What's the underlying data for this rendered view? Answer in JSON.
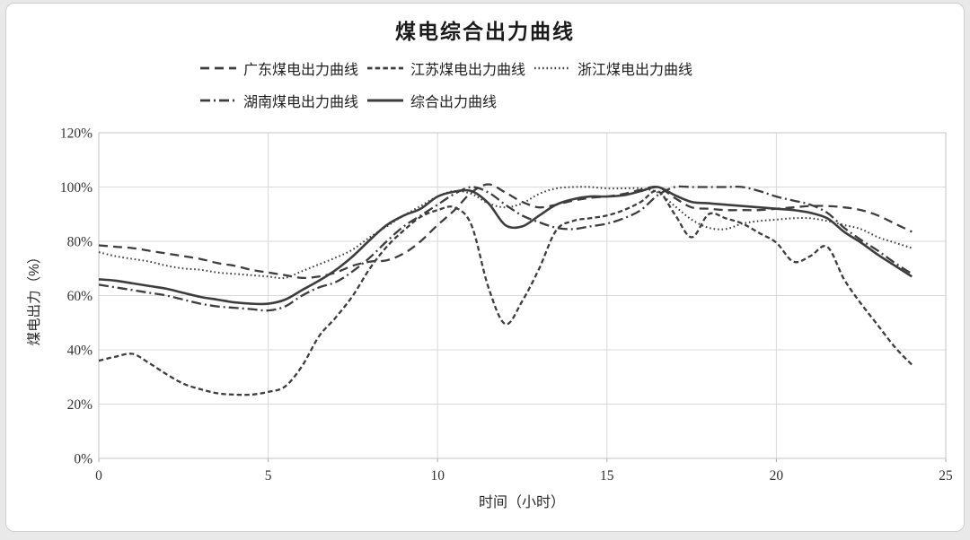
{
  "page": {
    "background_color": "#e9e9e9",
    "card_background": "#ffffff",
    "card_border_color": "#cfcfcf",
    "gridline_color": "#d9d9d9"
  },
  "chart_data": {
    "type": "line",
    "title": "煤电综合出力曲线",
    "xlabel": "时间（小时）",
    "ylabel": "煤电出力（%）",
    "xlim": [
      0,
      25
    ],
    "ylim": [
      0,
      120
    ],
    "x_ticks": [
      "0",
      "5",
      "10",
      "15",
      "20",
      "25"
    ],
    "y_ticks": [
      "0%",
      "20%",
      "40%",
      "60%",
      "80%",
      "100%",
      "120%"
    ],
    "grid": true,
    "legend_position": "top-left-two-rows",
    "legend_rows": [
      [
        0,
        1,
        2
      ],
      [
        3,
        4
      ]
    ],
    "line_color": "#3d3d3d",
    "x_start": 0,
    "x_step": 0.5,
    "series": [
      {
        "name": "广东煤电出力曲线",
        "line_style": "dash",
        "values": [
          78.5,
          78,
          77.5,
          76.5,
          75.5,
          74.5,
          73.5,
          72,
          71,
          69.5,
          68.5,
          67.5,
          66.5,
          67,
          68.5,
          71,
          72.5,
          73,
          75.5,
          80,
          86,
          91.5,
          98,
          101,
          98,
          94.5,
          92.5,
          93.5,
          95,
          96,
          96.5,
          97.5,
          99,
          100,
          96,
          92.5,
          92,
          91.5,
          91.5,
          91.5,
          92,
          92.5,
          93,
          93,
          92.5,
          91.5,
          89.5,
          86.5,
          83.5
        ]
      },
      {
        "name": "江苏煤电出力曲线",
        "line_style": "dense-dash",
        "values": [
          36,
          37.5,
          38.5,
          35,
          31,
          27.5,
          25.5,
          24,
          23.5,
          23.5,
          24.5,
          26.5,
          34,
          45,
          52,
          60,
          70,
          78,
          84,
          89,
          91.5,
          92.5,
          86,
          63,
          49.5,
          58,
          70,
          84,
          87.5,
          88.5,
          89.5,
          91.5,
          94.5,
          98.5,
          90,
          81.5,
          90,
          88.5,
          86.5,
          83,
          79.5,
          72.5,
          74.5,
          78,
          66,
          57,
          49,
          41,
          34.5
        ]
      },
      {
        "name": "浙江煤电出力曲线",
        "line_style": "dot",
        "values": [
          76,
          74.5,
          73.5,
          72.5,
          71,
          70,
          69.5,
          68.5,
          68,
          67.5,
          67,
          66.5,
          69,
          71.5,
          74,
          77,
          81.5,
          85.5,
          89.5,
          93,
          96.5,
          98.5,
          97.5,
          94,
          92.5,
          94,
          97.5,
          99.5,
          100,
          100,
          99.5,
          99.5,
          99.5,
          98,
          93,
          88,
          85,
          84.5,
          86.5,
          87.5,
          88,
          88.5,
          88.5,
          87.5,
          86,
          84.5,
          81.5,
          79.5,
          77.5
        ]
      },
      {
        "name": "湖南煤电出力曲线",
        "line_style": "dash-dot",
        "values": [
          64,
          63,
          62,
          61,
          60,
          58.5,
          57,
          56,
          55.5,
          55,
          54.5,
          56,
          60,
          63,
          65,
          69,
          74,
          80,
          85.5,
          89.5,
          93.5,
          97.5,
          100,
          98,
          93.5,
          89.5,
          87,
          85,
          84.5,
          85.5,
          86.5,
          88.5,
          91.5,
          97,
          100,
          100,
          100,
          100,
          100,
          98.5,
          96.5,
          95,
          93.5,
          90.5,
          85,
          80.5,
          76.5,
          72,
          68
        ]
      },
      {
        "name": "综合出力曲线",
        "line_style": "solid",
        "values": [
          66,
          65.5,
          64.5,
          63.5,
          62.5,
          61,
          59.5,
          58.5,
          57.5,
          57,
          57,
          58.5,
          62,
          65.5,
          69.5,
          74.5,
          80.5,
          86,
          89.5,
          92,
          96.5,
          98.3,
          98.5,
          94,
          86,
          85.5,
          89.5,
          93.5,
          95.5,
          96.5,
          96.5,
          97,
          98.5,
          100,
          97,
          94.5,
          94,
          93.5,
          93,
          92.5,
          92,
          91.5,
          90.5,
          88.5,
          83.5,
          79.5,
          75,
          71,
          67
        ]
      }
    ]
  }
}
